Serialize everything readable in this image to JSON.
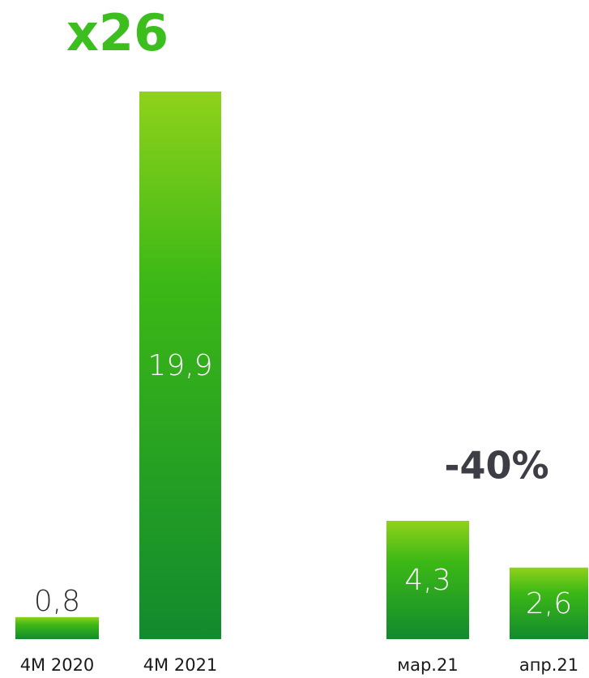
{
  "chart_data": [
    {
      "type": "bar",
      "annotation": "x26",
      "annotation_color": "#3cbf1e",
      "categories": [
        "4M 2020",
        "4M 2021"
      ],
      "values": [
        0.8,
        19.9
      ],
      "value_labels": [
        "0,8",
        "19,9"
      ]
    },
    {
      "type": "bar",
      "annotation": "-40%",
      "annotation_color": "#3d3d45",
      "categories": [
        "мар.21",
        "апр.21"
      ],
      "values": [
        4.3,
        2.6
      ],
      "value_labels": [
        "4,3",
        "2,6"
      ]
    }
  ]
}
